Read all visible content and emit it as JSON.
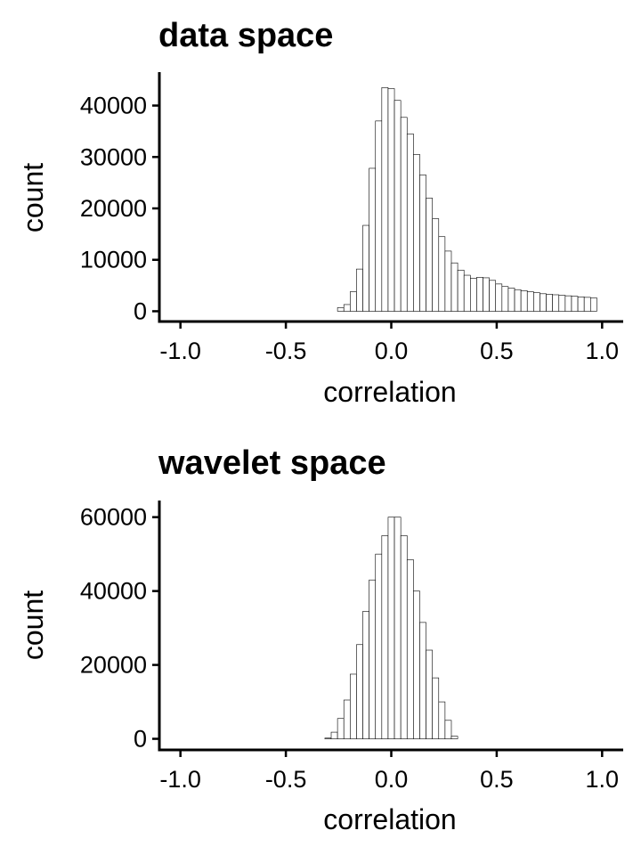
{
  "chart_data": [
    {
      "type": "bar",
      "title": "data space",
      "xlabel": "correlation",
      "ylabel": "count",
      "xlim": [
        -1.1,
        1.1
      ],
      "ylim": [
        -2000,
        46500
      ],
      "xticks": [
        -1.0,
        -0.5,
        0.0,
        0.5,
        1.0
      ],
      "xtick_labels": [
        "-1.0",
        "-0.5",
        "0.0",
        "0.5",
        "1.0"
      ],
      "yticks": [
        0,
        10000,
        20000,
        30000,
        40000
      ],
      "ytick_labels": [
        "0",
        "10000",
        "20000",
        "30000",
        "40000"
      ],
      "grid": false,
      "bin_width": 0.03,
      "x": [
        -0.24,
        -0.21,
        -0.18,
        -0.15,
        -0.12,
        -0.09,
        -0.06,
        -0.03,
        0.0,
        0.03,
        0.06,
        0.09,
        0.12,
        0.15,
        0.18,
        0.21,
        0.24,
        0.27,
        0.3,
        0.33,
        0.36,
        0.39,
        0.42,
        0.45,
        0.48,
        0.51,
        0.54,
        0.57,
        0.6,
        0.63,
        0.66,
        0.69,
        0.72,
        0.75,
        0.78,
        0.81,
        0.84,
        0.87,
        0.9,
        0.93,
        0.96
      ],
      "values": [
        700,
        1300,
        3800,
        8200,
        16700,
        27800,
        37000,
        43500,
        43300,
        41000,
        37700,
        34500,
        30500,
        26500,
        22000,
        18000,
        14500,
        11700,
        9400,
        8000,
        7000,
        6400,
        6600,
        6500,
        6000,
        5300,
        4800,
        4500,
        4200,
        4000,
        3800,
        3600,
        3400,
        3300,
        3200,
        3100,
        3000,
        2900,
        2800,
        2700,
        2600
      ]
    },
    {
      "type": "bar",
      "title": "wavelet space",
      "xlabel": "correlation",
      "ylabel": "count",
      "xlim": [
        -1.1,
        1.1
      ],
      "ylim": [
        -3000,
        64500
      ],
      "xticks": [
        -1.0,
        -0.5,
        0.0,
        0.5,
        1.0
      ],
      "xtick_labels": [
        "-1.0",
        "-0.5",
        "0.0",
        "0.5",
        "1.0"
      ],
      "yticks": [
        0,
        20000,
        40000,
        60000
      ],
      "ytick_labels": [
        "0",
        "20000",
        "40000",
        "60000"
      ],
      "grid": false,
      "bin_width": 0.03,
      "x": [
        -0.3,
        -0.27,
        -0.24,
        -0.21,
        -0.18,
        -0.15,
        -0.12,
        -0.09,
        -0.06,
        -0.03,
        0.0,
        0.03,
        0.06,
        0.09,
        0.12,
        0.15,
        0.18,
        0.21,
        0.24,
        0.27,
        0.3
      ],
      "values": [
        200,
        1800,
        5500,
        10500,
        17500,
        25500,
        34500,
        43000,
        50000,
        55000,
        60000,
        60000,
        55000,
        48500,
        40000,
        31500,
        24000,
        16500,
        10000,
        5000,
        700
      ]
    }
  ]
}
